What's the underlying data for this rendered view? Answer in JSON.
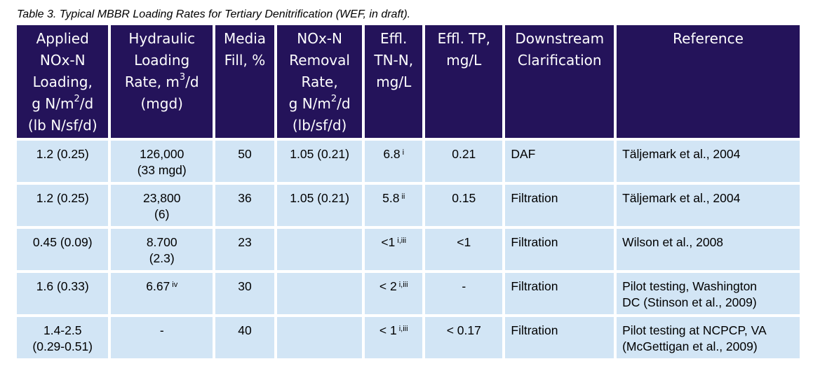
{
  "caption": "Table 3.  Typical MBBR Loading Rates for Tertiary Denitrification (WEF, in draft).",
  "headers": {
    "applied_loading": {
      "l1": "Applied",
      "l2": "NOx-N",
      "l3": "Loading,",
      "l4a": "g N/m",
      "l4sup": "2",
      "l4b": "/d",
      "l5": "(lb N/sf/d)"
    },
    "hydraulic": {
      "l1": "Hydraulic",
      "l2": "Loading",
      "l3a": "Rate, m",
      "l3sup": "3",
      "l3b": "/d",
      "l4": "(mgd)"
    },
    "media_fill": {
      "l1": "Media",
      "l2": "Fill, %"
    },
    "removal_rate": {
      "l1": "NOx-N",
      "l2": "Removal",
      "l3": "Rate,",
      "l4a": "g N/m",
      "l4sup": "2",
      "l4b": "/d",
      "l5": "(lb/sf/d)"
    },
    "effl_tn": {
      "l1": "Effl.",
      "l2": "TN-N,",
      "l3": "mg/L"
    },
    "effl_tp": {
      "l1": "Effl. TP,",
      "l2": "mg/L"
    },
    "downstream": {
      "l1": "Downstream",
      "l2": "Clarification"
    },
    "reference": {
      "l1": "Reference"
    }
  },
  "rows": [
    {
      "loading": [
        "1.2 (0.25)"
      ],
      "hydraulic": [
        "126,000",
        "(33 mgd)"
      ],
      "hydraulic_note": "",
      "media": "50",
      "removal": "1.05 (0.21)",
      "tn": "6.8",
      "tn_note": "i",
      "tp": "0.21",
      "clarification": "DAF",
      "reference": [
        "Täljemark et al., 2004"
      ]
    },
    {
      "loading": [
        "1.2 (0.25)"
      ],
      "hydraulic": [
        "23,800",
        "(6)"
      ],
      "hydraulic_note": "",
      "media": "36",
      "removal": "1.05 (0.21)",
      "tn": "5.8",
      "tn_note": "ii",
      "tp": "0.15",
      "clarification": "Filtration",
      "reference": [
        "Täljemark et al., 2004"
      ]
    },
    {
      "loading": [
        "0.45 (0.09)"
      ],
      "hydraulic": [
        "8.700",
        "(2.3)"
      ],
      "hydraulic_note": "",
      "media": "23",
      "removal": "",
      "tn": "<1",
      "tn_note": "i,iii",
      "tp": "<1",
      "clarification": "Filtration",
      "reference": [
        "Wilson et al., 2008"
      ]
    },
    {
      "loading": [
        "1.6 (0.33)"
      ],
      "hydraulic": [
        "6.67"
      ],
      "hydraulic_note": "iv",
      "media": "30",
      "removal": "",
      "tn": "< 2",
      "tn_note": "i,iii",
      "tp": "-",
      "clarification": "Filtration",
      "reference": [
        "Pilot testing, Washington",
        "DC (Stinson et al., 2009)"
      ]
    },
    {
      "loading": [
        "1.4-2.5",
        "(0.29-0.51)"
      ],
      "hydraulic": [
        "-"
      ],
      "hydraulic_note": "",
      "media": "40",
      "removal": "",
      "tn": "< 1",
      "tn_note": "i,iii",
      "tp": "< 0.17",
      "clarification": "Filtration",
      "reference": [
        "Pilot testing at NCPCP, VA",
        "(McGettigan et al., 2009)"
      ]
    }
  ]
}
